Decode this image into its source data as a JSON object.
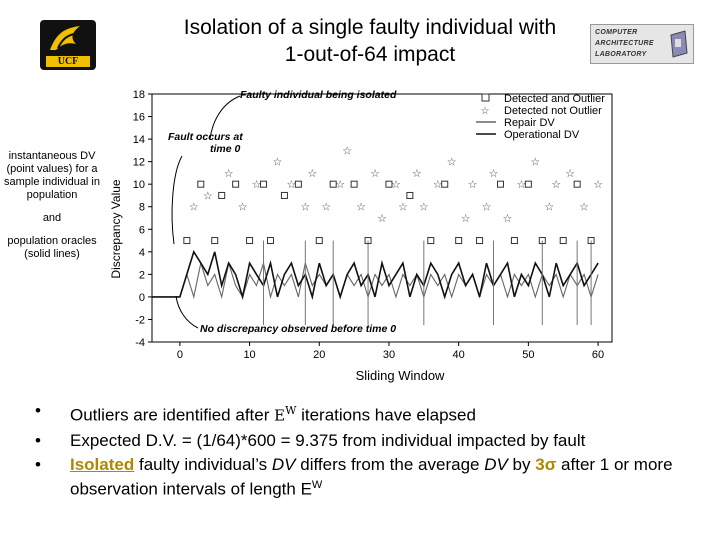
{
  "slide": {
    "title_line1": "Isolation of a single faulty individual with",
    "title_line2": "1-out-of-64 impact"
  },
  "logos": {
    "left_text": "UCF",
    "right_lines": [
      "COMPUTER",
      "ARCHITECTURE",
      "LABORATORY"
    ]
  },
  "side_note": {
    "part1": "instantaneous DV (point values) for a sample individual in population",
    "part2": "and",
    "part3": "population oracles (solid lines)"
  },
  "chart_data": {
    "type": "scatter",
    "ylabel": "Discrepancy Value",
    "xlabel": "Sliding Window",
    "xlim": [
      -4,
      62
    ],
    "ylim": [
      -4,
      18
    ],
    "x_ticks": [
      0,
      10,
      20,
      30,
      40,
      50,
      60
    ],
    "y_ticks": [
      -4,
      -2,
      0,
      2,
      4,
      6,
      8,
      10,
      12,
      14,
      16,
      18
    ],
    "legend_position": "top-right",
    "legend": [
      "Detected and Outlier",
      "Detected not Outlier",
      "Repair DV",
      "Operational DV"
    ],
    "annotations": [
      {
        "text": "Faulty individual being isolated"
      },
      {
        "text": "Fault occurs at time 0"
      },
      {
        "text": "No discrepancy observed before time 0"
      }
    ],
    "series": [
      {
        "name": "Detected and Outlier",
        "points": [
          [
            1,
            5
          ],
          [
            3,
            10
          ],
          [
            5,
            5
          ],
          [
            6,
            9
          ],
          [
            8,
            10
          ],
          [
            10,
            5
          ],
          [
            12,
            10
          ],
          [
            13,
            5
          ],
          [
            15,
            9
          ],
          [
            17,
            10
          ],
          [
            20,
            5
          ],
          [
            22,
            10
          ],
          [
            25,
            10
          ],
          [
            27,
            5
          ],
          [
            30,
            10
          ],
          [
            33,
            9
          ],
          [
            36,
            5
          ],
          [
            38,
            10
          ],
          [
            40,
            5
          ],
          [
            43,
            5
          ],
          [
            46,
            10
          ],
          [
            48,
            5
          ],
          [
            50,
            10
          ],
          [
            52,
            5
          ],
          [
            55,
            5
          ],
          [
            57,
            10
          ],
          [
            59,
            5
          ]
        ]
      },
      {
        "name": "Detected not Outlier",
        "points": [
          [
            2,
            8
          ],
          [
            4,
            9
          ],
          [
            7,
            11
          ],
          [
            9,
            8
          ],
          [
            11,
            10
          ],
          [
            14,
            12
          ],
          [
            16,
            10
          ],
          [
            18,
            8
          ],
          [
            19,
            11
          ],
          [
            21,
            8
          ],
          [
            23,
            10
          ],
          [
            24,
            13
          ],
          [
            26,
            8
          ],
          [
            28,
            11
          ],
          [
            29,
            7
          ],
          [
            31,
            10
          ],
          [
            32,
            8
          ],
          [
            34,
            11
          ],
          [
            35,
            8
          ],
          [
            37,
            10
          ],
          [
            39,
            12
          ],
          [
            41,
            7
          ],
          [
            42,
            10
          ],
          [
            44,
            8
          ],
          [
            45,
            11
          ],
          [
            47,
            7
          ],
          [
            49,
            10
          ],
          [
            51,
            12
          ],
          [
            53,
            8
          ],
          [
            54,
            10
          ],
          [
            56,
            11
          ],
          [
            58,
            8
          ],
          [
            60,
            10
          ]
        ]
      },
      {
        "name": "Repair DV",
        "x": [
          0,
          1,
          2,
          3,
          4,
          5,
          6,
          7,
          8,
          9,
          10,
          11,
          12,
          13,
          14,
          15,
          16,
          17,
          18,
          19,
          20,
          21,
          22,
          23,
          24,
          25,
          26,
          27,
          28,
          29,
          30,
          31,
          32,
          33,
          34,
          35,
          36,
          37,
          38,
          39,
          40,
          41,
          42,
          43,
          44,
          45,
          46,
          47,
          48,
          49,
          50,
          51,
          52,
          53,
          54,
          55,
          56,
          57,
          58,
          59,
          60
        ],
        "y": [
          0,
          2,
          0,
          3,
          1,
          2,
          0,
          3,
          1,
          0,
          2,
          1,
          3,
          0,
          2,
          1,
          2,
          0,
          3,
          1,
          2,
          1,
          2,
          0,
          2,
          1,
          2,
          0,
          2,
          1,
          2,
          0,
          2,
          1,
          2,
          0,
          2,
          1,
          2,
          0,
          2,
          1,
          2,
          0,
          2,
          1,
          2,
          0,
          2,
          1,
          2,
          0,
          2,
          1,
          2,
          0,
          2,
          1,
          2,
          0,
          2
        ]
      },
      {
        "name": "Operational DV",
        "x": [
          -4,
          0,
          1,
          2,
          3,
          4,
          5,
          6,
          7,
          8,
          9,
          10,
          11,
          12,
          13,
          14,
          15,
          16,
          17,
          18,
          19,
          20,
          21,
          22,
          23,
          24,
          25,
          26,
          27,
          28,
          29,
          30,
          31,
          32,
          33,
          34,
          35,
          36,
          37,
          38,
          39,
          40,
          41,
          42,
          43,
          44,
          45,
          46,
          47,
          48,
          49,
          50,
          51,
          52,
          53,
          54,
          55,
          56,
          57,
          58,
          59,
          60
        ],
        "y": [
          0,
          0,
          2,
          4,
          3,
          2,
          4,
          1,
          3,
          2,
          0,
          3,
          2,
          1,
          3,
          0,
          2,
          3,
          1,
          2,
          0,
          3,
          1,
          2,
          0,
          2,
          3,
          1,
          2,
          0,
          3,
          1,
          2,
          3,
          0,
          2,
          1,
          3,
          2,
          0,
          2,
          3,
          1,
          2,
          0,
          3,
          1,
          2,
          3,
          0,
          2,
          1,
          3,
          2,
          0,
          3,
          1,
          2,
          3,
          1,
          2,
          3
        ]
      }
    ]
  },
  "bullets": [
    {
      "pre": "Outliers are identified after ",
      "sym": "E",
      "sup": "W",
      "post": " iterations have elapsed"
    },
    {
      "text": "Expected D.V. = (1/64)*600 = 9.375 from individual impacted by fault"
    },
    {
      "isolated": "Isolated",
      "t1": " faulty individual’s ",
      "dv1": "DV",
      "t2": " differs from the average ",
      "dv2": "DV",
      "t3": " by ",
      "sigma": "3σ",
      "t4": " after 1 or more observation intervals of length E",
      "sup": "W"
    }
  ],
  "colors": {
    "gold": "#b08900",
    "series_line_dark": "#111111",
    "series_line_gray": "#666666"
  }
}
